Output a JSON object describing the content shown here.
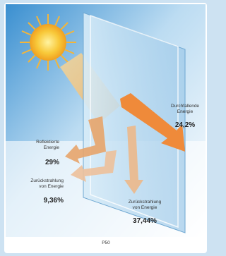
{
  "labels": [
    {
      "lines": [
        "Durchfallende",
        "Energie"
      ],
      "value": "24,2%"
    },
    {
      "lines": [
        "Reflektierte",
        "Energie"
      ],
      "value": "29%"
    },
    {
      "lines": [
        "Zurückstrahlung",
        "von Energie"
      ],
      "value": "9,36%"
    },
    {
      "lines": [
        "Zurückstrahlung",
        "von Energie"
      ],
      "value": "37,44%"
    }
  ],
  "caption": "P50"
}
